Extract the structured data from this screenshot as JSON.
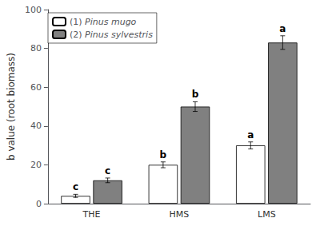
{
  "chart_data": {
    "type": "bar",
    "categories": [
      "THE",
      "HMS",
      "LMS"
    ],
    "series": [
      {
        "name": "(1) Pinus mugo",
        "color": "#ffffff",
        "values": [
          4,
          20,
          30
        ],
        "errors": [
          0.8,
          1.5,
          1.8
        ],
        "annotations": [
          "c",
          "b",
          "a"
        ]
      },
      {
        "name": "(2) Pinus sylvestris",
        "color": "#808080",
        "values": [
          12,
          50,
          83
        ],
        "errors": [
          1.2,
          2.5,
          3.5
        ],
        "annotations": [
          "c",
          "b",
          "a"
        ]
      }
    ],
    "ylabel": "b value (root biomass)",
    "ylim": [
      0,
      100
    ],
    "yticks": [
      0,
      20,
      40,
      60,
      80,
      100
    ],
    "legend": "upper left",
    "grid": false
  }
}
